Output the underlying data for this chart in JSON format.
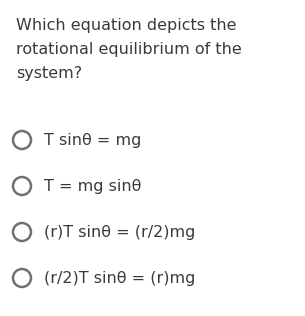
{
  "title_lines": [
    "Which equation depicts the",
    "rotational equilibrium of the",
    "system?"
  ],
  "options": [
    "T sinθ = mg",
    "T = mg sinθ",
    "(r)T sinθ = (r/2)mg",
    "(r/2)T sinθ = (r)mg"
  ],
  "background_color": "#ffffff",
  "text_color": "#3a3a3a",
  "title_fontsize": 11.5,
  "option_fontsize": 11.5,
  "circle_linewidth": 1.8,
  "circle_color": "#707070"
}
